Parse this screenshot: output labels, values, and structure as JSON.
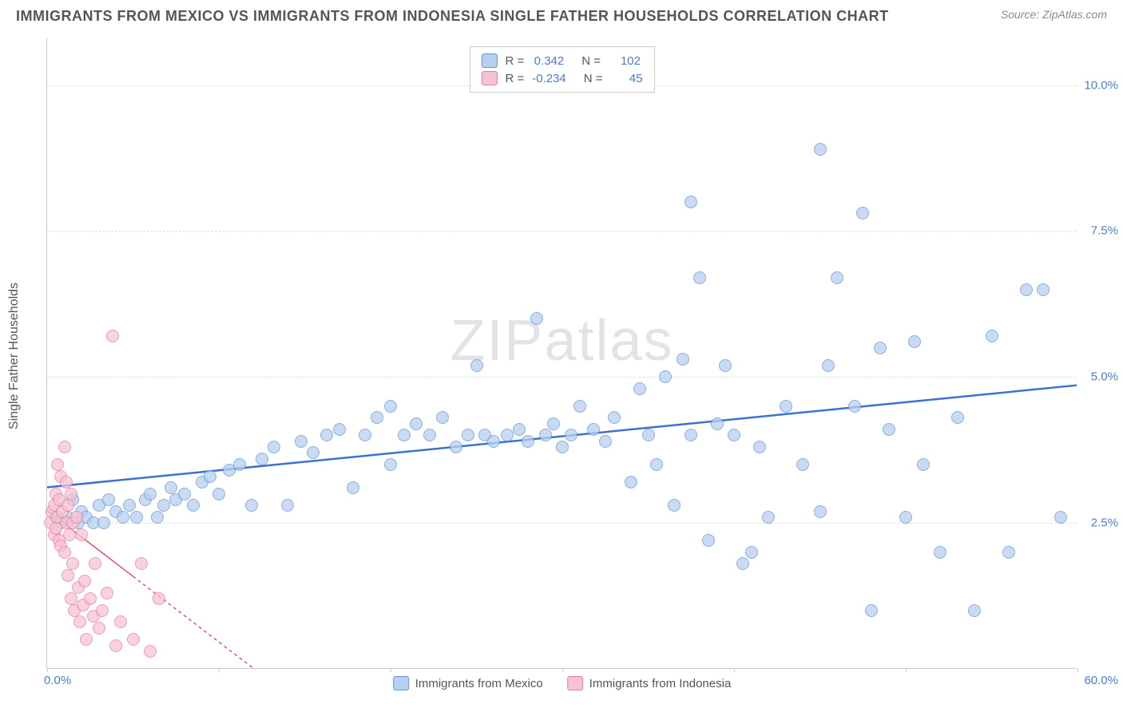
{
  "title": "IMMIGRANTS FROM MEXICO VS IMMIGRANTS FROM INDONESIA SINGLE FATHER HOUSEHOLDS CORRELATION CHART",
  "source_label": "Source: ",
  "source_value": "ZipAtlas.com",
  "ylabel": "Single Father Households",
  "watermark": "ZIPatlas",
  "chart": {
    "type": "scatter",
    "xlim": [
      0,
      60
    ],
    "ylim": [
      0,
      10.8
    ],
    "yticks": [
      {
        "v": 2.5,
        "label": "2.5%"
      },
      {
        "v": 5.0,
        "label": "5.0%"
      },
      {
        "v": 7.5,
        "label": "7.5%"
      },
      {
        "v": 10.0,
        "label": "10.0%"
      }
    ],
    "xtick_positions": [
      0,
      10,
      20,
      30,
      40,
      50,
      60
    ],
    "xlabel_min": "0.0%",
    "xlabel_max": "60.0%",
    "background_color": "#ffffff",
    "grid_color": "#dddddd",
    "axis_color": "#cccccc",
    "marker_size": 16,
    "series": [
      {
        "name": "Immigrants from Mexico",
        "fill": "#b6d0f0",
        "stroke": "#6793d6",
        "R": "0.342",
        "N": "102",
        "trend": {
          "x1": 0,
          "y1": 3.1,
          "x2": 60,
          "y2": 4.85,
          "color": "#3b72d1",
          "width": 2.5,
          "dash": "none"
        },
        "points": [
          [
            0.5,
            2.6
          ],
          [
            0.8,
            2.5
          ],
          [
            1.2,
            2.6
          ],
          [
            1.5,
            2.9
          ],
          [
            1.8,
            2.5
          ],
          [
            2.0,
            2.7
          ],
          [
            2.3,
            2.6
          ],
          [
            2.7,
            2.5
          ],
          [
            3.0,
            2.8
          ],
          [
            3.3,
            2.5
          ],
          [
            3.6,
            2.9
          ],
          [
            4.0,
            2.7
          ],
          [
            4.4,
            2.6
          ],
          [
            4.8,
            2.8
          ],
          [
            5.2,
            2.6
          ],
          [
            5.7,
            2.9
          ],
          [
            6.0,
            3.0
          ],
          [
            6.4,
            2.6
          ],
          [
            6.8,
            2.8
          ],
          [
            7.2,
            3.1
          ],
          [
            7.5,
            2.9
          ],
          [
            8.0,
            3.0
          ],
          [
            8.5,
            2.8
          ],
          [
            9.0,
            3.2
          ],
          [
            9.5,
            3.3
          ],
          [
            10.0,
            3.0
          ],
          [
            10.6,
            3.4
          ],
          [
            11.2,
            3.5
          ],
          [
            11.9,
            2.8
          ],
          [
            12.5,
            3.6
          ],
          [
            13.2,
            3.8
          ],
          [
            14.0,
            2.8
          ],
          [
            14.8,
            3.9
          ],
          [
            15.5,
            3.7
          ],
          [
            16.3,
            4.0
          ],
          [
            17.0,
            4.1
          ],
          [
            17.8,
            3.1
          ],
          [
            18.5,
            4.0
          ],
          [
            19.2,
            4.3
          ],
          [
            20.0,
            3.5
          ],
          [
            20.0,
            4.5
          ],
          [
            20.8,
            4.0
          ],
          [
            21.5,
            4.2
          ],
          [
            22.3,
            4.0
          ],
          [
            23.0,
            4.3
          ],
          [
            23.8,
            3.8
          ],
          [
            24.5,
            4.0
          ],
          [
            25.0,
            5.2
          ],
          [
            25.5,
            4.0
          ],
          [
            26.0,
            3.9
          ],
          [
            26.8,
            4.0
          ],
          [
            27.5,
            4.1
          ],
          [
            28.0,
            3.9
          ],
          [
            28.5,
            6.0
          ],
          [
            29.0,
            4.0
          ],
          [
            29.5,
            4.2
          ],
          [
            30.0,
            3.8
          ],
          [
            30.5,
            4.0
          ],
          [
            31.0,
            4.5
          ],
          [
            31.8,
            4.1
          ],
          [
            32.5,
            3.9
          ],
          [
            33.0,
            4.3
          ],
          [
            34.0,
            3.2
          ],
          [
            34.5,
            4.8
          ],
          [
            35.0,
            4.0
          ],
          [
            35.5,
            3.5
          ],
          [
            36.0,
            5.0
          ],
          [
            36.5,
            2.8
          ],
          [
            37.0,
            5.3
          ],
          [
            37.5,
            4.0
          ],
          [
            37.5,
            8.0
          ],
          [
            38.0,
            6.7
          ],
          [
            38.5,
            2.2
          ],
          [
            39.0,
            4.2
          ],
          [
            39.5,
            5.2
          ],
          [
            40.0,
            4.0
          ],
          [
            40.5,
            1.8
          ],
          [
            41.0,
            2.0
          ],
          [
            41.5,
            3.8
          ],
          [
            42.0,
            2.6
          ],
          [
            43.0,
            4.5
          ],
          [
            44.0,
            3.5
          ],
          [
            45.0,
            2.7
          ],
          [
            45.0,
            8.9
          ],
          [
            45.5,
            5.2
          ],
          [
            46.0,
            6.7
          ],
          [
            47.0,
            4.5
          ],
          [
            47.5,
            7.8
          ],
          [
            48.0,
            1.0
          ],
          [
            48.5,
            5.5
          ],
          [
            49.0,
            4.1
          ],
          [
            50.0,
            2.6
          ],
          [
            50.5,
            5.6
          ],
          [
            51.0,
            3.5
          ],
          [
            52.0,
            2.0
          ],
          [
            53.0,
            4.3
          ],
          [
            54.0,
            1.0
          ],
          [
            55.0,
            5.7
          ],
          [
            56.0,
            2.0
          ],
          [
            57.0,
            6.5
          ],
          [
            58.0,
            6.5
          ],
          [
            59.0,
            2.6
          ]
        ]
      },
      {
        "name": "Immigrants from Indonesia",
        "fill": "#f6c3d2",
        "stroke": "#e77c9d",
        "R": "-0.234",
        "N": "45",
        "trend": {
          "x1": 0,
          "y1": 2.7,
          "x2": 12,
          "y2": 0.0,
          "color": "#e64a7a",
          "width": 1.5,
          "dash": "4,4",
          "solid_end": 5
        },
        "points": [
          [
            0.2,
            2.5
          ],
          [
            0.3,
            2.7
          ],
          [
            0.4,
            2.3
          ],
          [
            0.4,
            2.8
          ],
          [
            0.5,
            2.4
          ],
          [
            0.5,
            3.0
          ],
          [
            0.6,
            2.6
          ],
          [
            0.6,
            3.5
          ],
          [
            0.7,
            2.2
          ],
          [
            0.7,
            2.9
          ],
          [
            0.8,
            3.3
          ],
          [
            0.8,
            2.1
          ],
          [
            0.9,
            2.7
          ],
          [
            1.0,
            3.8
          ],
          [
            1.0,
            2.0
          ],
          [
            1.1,
            2.5
          ],
          [
            1.1,
            3.2
          ],
          [
            1.2,
            1.6
          ],
          [
            1.2,
            2.8
          ],
          [
            1.3,
            2.3
          ],
          [
            1.4,
            1.2
          ],
          [
            1.4,
            3.0
          ],
          [
            1.5,
            1.8
          ],
          [
            1.5,
            2.5
          ],
          [
            1.6,
            1.0
          ],
          [
            1.7,
            2.6
          ],
          [
            1.8,
            1.4
          ],
          [
            1.9,
            0.8
          ],
          [
            2.0,
            2.3
          ],
          [
            2.1,
            1.1
          ],
          [
            2.2,
            1.5
          ],
          [
            2.3,
            0.5
          ],
          [
            2.5,
            1.2
          ],
          [
            2.7,
            0.9
          ],
          [
            2.8,
            1.8
          ],
          [
            3.0,
            0.7
          ],
          [
            3.2,
            1.0
          ],
          [
            3.5,
            1.3
          ],
          [
            3.8,
            5.7
          ],
          [
            4.0,
            0.4
          ],
          [
            4.3,
            0.8
          ],
          [
            5.0,
            0.5
          ],
          [
            5.5,
            1.8
          ],
          [
            6.0,
            0.3
          ],
          [
            6.5,
            1.2
          ]
        ]
      }
    ]
  },
  "legend_bottom": [
    {
      "label": "Immigrants from Mexico",
      "fill": "#b6d0f0",
      "stroke": "#6793d6"
    },
    {
      "label": "Immigrants from Indonesia",
      "fill": "#f6c3d2",
      "stroke": "#e77c9d"
    }
  ]
}
